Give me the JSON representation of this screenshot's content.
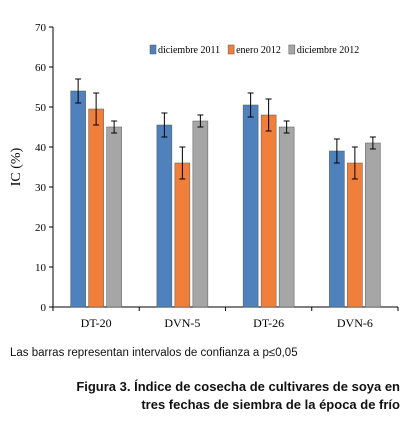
{
  "chart_data": {
    "type": "bar",
    "ylabel": "IC (%)",
    "xlabel": "",
    "ylim": [
      0,
      70
    ],
    "yticks": [
      0,
      10,
      20,
      30,
      40,
      50,
      60,
      70
    ],
    "grid": false,
    "legend_position": "top",
    "categories": [
      "DT-20",
      "DVN-5",
      "DT-26",
      "DVN-6"
    ],
    "series": [
      {
        "name": "diciembre 2011",
        "color": "#4f81bd",
        "values": [
          54,
          45.5,
          50.5,
          39
        ],
        "errors": [
          3,
          3,
          3,
          3
        ]
      },
      {
        "name": "enero 2012",
        "color": "#f07f3c",
        "values": [
          49.5,
          36,
          48,
          36
        ],
        "errors": [
          4,
          4,
          4,
          4
        ]
      },
      {
        "name": "diciembre 2012",
        "color": "#a6a6a6",
        "values": [
          45,
          46.5,
          45,
          41
        ],
        "errors": [
          1.5,
          1.5,
          1.5,
          1.5
        ]
      }
    ]
  },
  "note": "Las barras representan intervalos de confianza a p≤0,05",
  "caption": {
    "line1": "Figura 3. Índice de cosecha de cultivares de soya en",
    "line2": "tres fechas de siembra de la época de frío"
  }
}
